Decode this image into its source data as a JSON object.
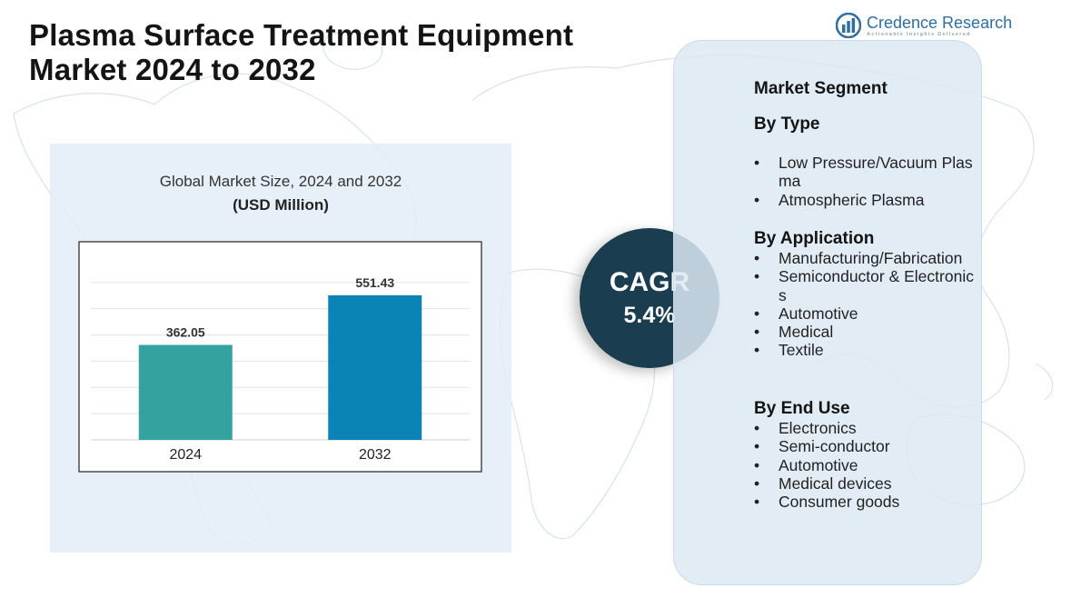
{
  "title": {
    "line1": "Plasma Surface Treatment Equipment",
    "line2": "Market 2024 to 2032"
  },
  "logo": {
    "name": "Credence Research",
    "tagline": "Actionable Insights Delivered",
    "icon": "bar-chart-logo-icon",
    "color": "#2f6e9e"
  },
  "chart_data": {
    "type": "bar",
    "title": "Global Market Size, 2024 and 2032",
    "unit": "(USD Million)",
    "categories": [
      "2024",
      "2032"
    ],
    "values": [
      362.05,
      551.43
    ],
    "value_labels": [
      "362.05",
      "551.43"
    ],
    "colors": [
      "#34a29f",
      "#0b84b5"
    ],
    "ylim": [
      0,
      700
    ],
    "grid": true,
    "xlabel": "",
    "ylabel": ""
  },
  "cagr": {
    "label": "CAGR",
    "value": "5.4%",
    "color": "#1a3d4f"
  },
  "segments": {
    "heading": "Market Segment",
    "by_type": {
      "title": "By Type",
      "items": [
        "Low Pressure/Vacuum Plasma",
        "Atmospheric Plasma"
      ]
    },
    "by_application": {
      "title": "By Application",
      "items": [
        "Manufacturing/Fabrication",
        "Semiconductor & Electronics",
        "Automotive",
        "Medical",
        "Textile"
      ]
    },
    "by_end_use": {
      "title": "By End Use",
      "items": [
        "Electronics",
        "Semi-conductor",
        "Automotive",
        "Medical devices",
        "Consumer goods"
      ]
    },
    "bullet": "•"
  }
}
